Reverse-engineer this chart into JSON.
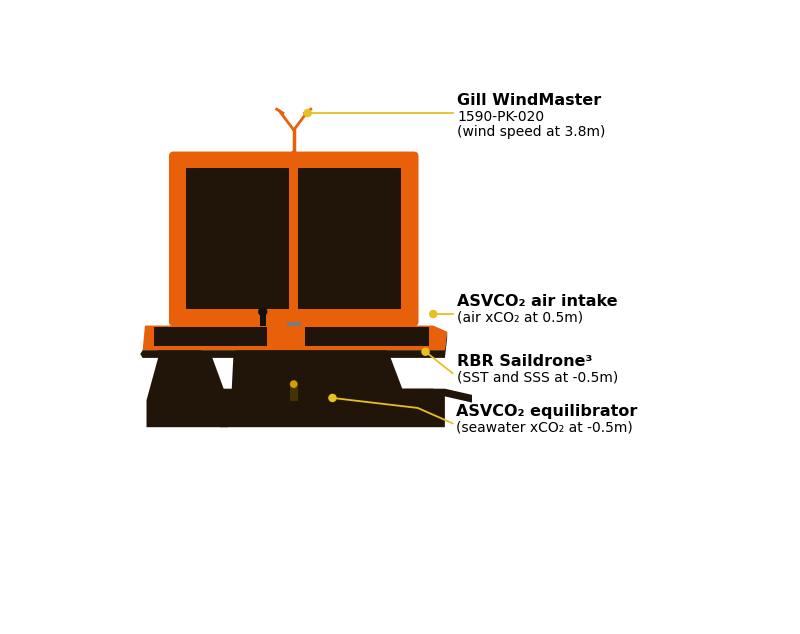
{
  "bg_color": "#ffffff",
  "orange": "#E8610A",
  "dark_brown": "#201508",
  "gray": "#7A7A7A",
  "yellow_line": "#E8C020",
  "dot_color": "#E8C020",
  "wind_label": "Gill WindMaster",
  "wind_sub1": "1590-PK-020",
  "wind_sub2": "(wind speed at 3.8m)",
  "air_label": "ASVCO₂ air intake",
  "air_sub": "(air xCO₂ at 0.5m)",
  "rbr_label": "RBR Saildrone³",
  "rbr_sub": "(SST and SSS at -0.5m)",
  "eq_label": "ASVCO₂ equilibrator",
  "eq_sub": "(seawater xCO₂ at -0.5m)"
}
